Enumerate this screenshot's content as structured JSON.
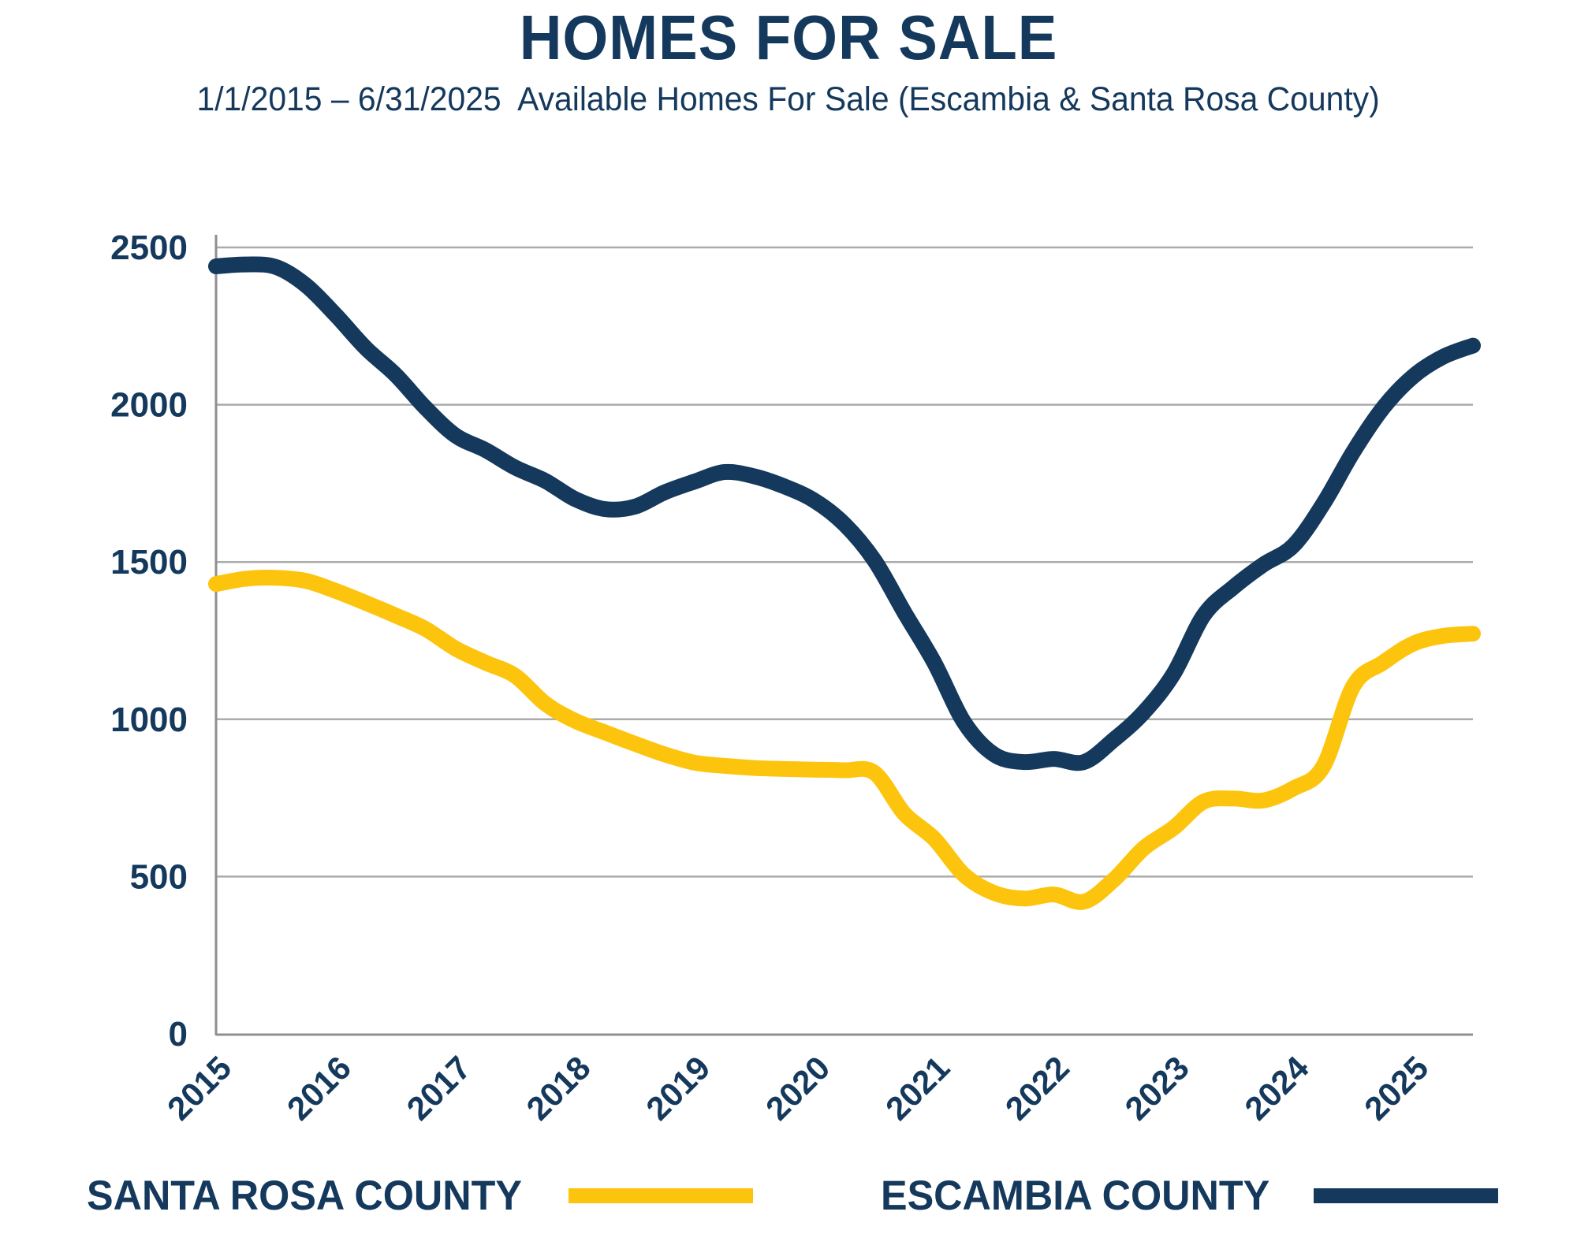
{
  "header": {
    "title": "HOMES FOR SALE",
    "subtitle": "1/1/2015 – 6/31/2025  Available Homes For Sale (Escambia & Santa Rosa County)"
  },
  "colors": {
    "text": "#14395C",
    "navy": "#14395C",
    "yellow": "#FDC40E",
    "gridline": "#ABABAB",
    "axis": "#8F8F8F"
  },
  "legend": {
    "items": [
      {
        "label": "SANTA ROSA COUNTY",
        "color": "#FDC40E"
      },
      {
        "label": "ESCAMBIA COUNTY",
        "color": "#14395C"
      }
    ]
  },
  "chart_data": {
    "type": "line",
    "title": "HOMES FOR SALE",
    "subtitle": "1/1/2015 – 6/31/2025  Available Homes For Sale (Escambia & Santa Rosa County)",
    "xlabel": "",
    "ylabel": "",
    "x_range": [
      2015,
      2025.5
    ],
    "ylim": [
      0,
      2500
    ],
    "y_ticks": [
      0,
      500,
      1000,
      1500,
      2000,
      2500
    ],
    "x_ticks": [
      2015,
      2016,
      2017,
      2018,
      2019,
      2020,
      2021,
      2022,
      2023,
      2024,
      2025
    ],
    "grid": "horizontal",
    "legend_position": "bottom",
    "x": [
      2015.0,
      2015.25,
      2015.5,
      2015.75,
      2016.0,
      2016.25,
      2016.5,
      2016.75,
      2017.0,
      2017.25,
      2017.5,
      2017.75,
      2018.0,
      2018.25,
      2018.5,
      2018.75,
      2019.0,
      2019.25,
      2019.5,
      2019.75,
      2020.0,
      2020.25,
      2020.5,
      2020.75,
      2021.0,
      2021.25,
      2021.5,
      2021.75,
      2022.0,
      2022.25,
      2022.5,
      2022.75,
      2023.0,
      2023.25,
      2023.5,
      2023.75,
      2024.0,
      2024.25,
      2024.5,
      2024.75,
      2025.0,
      2025.25,
      2025.5
    ],
    "series": [
      {
        "name": "SANTA ROSA COUNTY",
        "color": "#FDC40E",
        "values": [
          1430,
          1447,
          1450,
          1440,
          1408,
          1370,
          1330,
          1287,
          1225,
          1180,
          1138,
          1050,
          995,
          958,
          922,
          888,
          862,
          852,
          845,
          842,
          840,
          838,
          830,
          700,
          620,
          505,
          448,
          430,
          443,
          420,
          490,
          590,
          655,
          738,
          748,
          742,
          780,
          850,
          1105,
          1180,
          1240,
          1265,
          1272
        ]
      },
      {
        "name": "ESCAMBIA COUNTY",
        "color": "#14395C",
        "values": [
          2440,
          2446,
          2438,
          2380,
          2285,
          2180,
          2095,
          1990,
          1902,
          1856,
          1800,
          1758,
          1700,
          1668,
          1676,
          1722,
          1756,
          1786,
          1772,
          1740,
          1695,
          1620,
          1505,
          1340,
          1180,
          990,
          888,
          864,
          874,
          864,
          935,
          1022,
          1145,
          1330,
          1420,
          1492,
          1552,
          1685,
          1850,
          1990,
          2090,
          2152,
          2188
        ]
      }
    ]
  }
}
